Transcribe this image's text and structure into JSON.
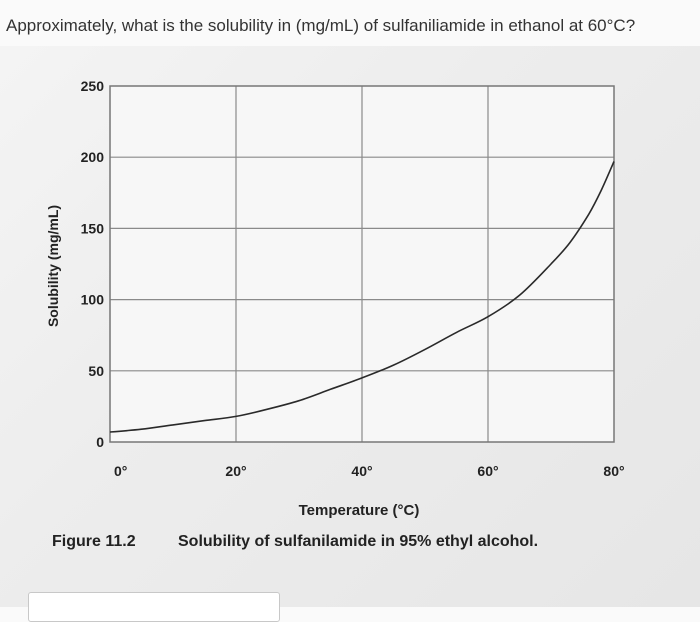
{
  "question": {
    "text": "Approximately, what is the solubility in (mg/mL) of sulfaniliamide in ethanol at 60°C?"
  },
  "chart_data": {
    "type": "line",
    "title": "",
    "figure_label": "Figure 11.2",
    "caption": "Solubility of sulfanilamide in 95% ethyl alcohol.",
    "xlabel": "Temperature (°C)",
    "ylabel": "Solubility (mg/mL)",
    "xlim": [
      0,
      80
    ],
    "ylim": [
      0,
      250
    ],
    "xticks": [
      {
        "value": 0,
        "label": "0°"
      },
      {
        "value": 20,
        "label": "20°"
      },
      {
        "value": 40,
        "label": "40°"
      },
      {
        "value": 60,
        "label": "60°"
      },
      {
        "value": 80,
        "label": "80°"
      }
    ],
    "yticks": [
      {
        "value": 0,
        "label": "0"
      },
      {
        "value": 50,
        "label": "50"
      },
      {
        "value": 100,
        "label": "100"
      },
      {
        "value": 150,
        "label": "150"
      },
      {
        "value": 200,
        "label": "200"
      },
      {
        "value": 250,
        "label": "250"
      }
    ],
    "grid": true,
    "series": [
      {
        "x": [
          0,
          5,
          10,
          15,
          20,
          25,
          30,
          35,
          40,
          45,
          50,
          55,
          60,
          65,
          70,
          73,
          76,
          78,
          80
        ],
        "y": [
          7,
          9,
          12,
          15,
          18,
          23,
          29,
          37,
          45,
          54,
          65,
          77,
          88,
          103,
          125,
          140,
          160,
          177,
          197
        ]
      }
    ]
  }
}
